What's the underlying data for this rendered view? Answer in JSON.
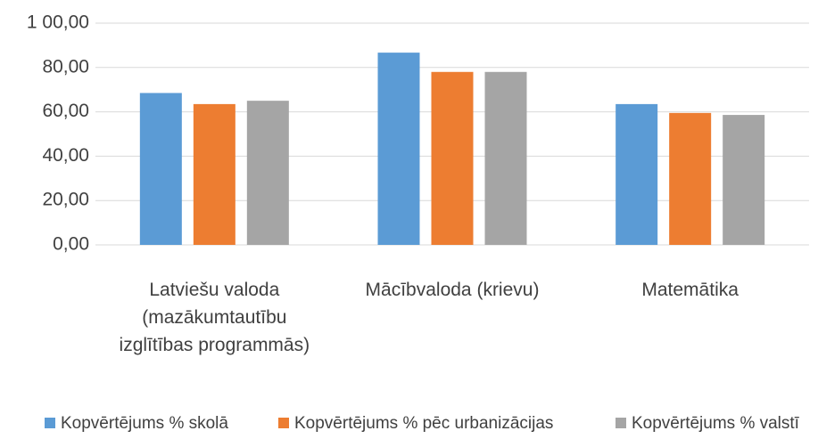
{
  "chart_data": {
    "type": "bar",
    "categories": [
      "Latviešu valoda (mazākumtautību izglītības programmās)",
      "Mācībvaloda (krievu)",
      "Matemātika"
    ],
    "series": [
      {
        "name": "Kopvērtējums % skolā",
        "color": "#5b9bd5",
        "values": [
          68.5,
          86.7,
          63.5
        ]
      },
      {
        "name": "Kopvērtējums % pēc urbanizācijas",
        "color": "#ed7d31",
        "values": [
          63.5,
          78,
          59.5
        ]
      },
      {
        "name": "Kopvērtējums % valstī",
        "color": "#a5a5a5",
        "values": [
          65,
          78,
          58.6
        ]
      }
    ],
    "ylim": [
      0,
      100
    ],
    "yticks": [
      {
        "value": 0,
        "label": "0,00"
      },
      {
        "value": 20,
        "label": "20,00"
      },
      {
        "value": 40,
        "label": "40,00"
      },
      {
        "value": 60,
        "label": "60,00"
      },
      {
        "value": 80,
        "label": "80,00"
      },
      {
        "value": 100,
        "label": "1 00,00"
      }
    ],
    "grid": true,
    "legend": "bottom"
  }
}
